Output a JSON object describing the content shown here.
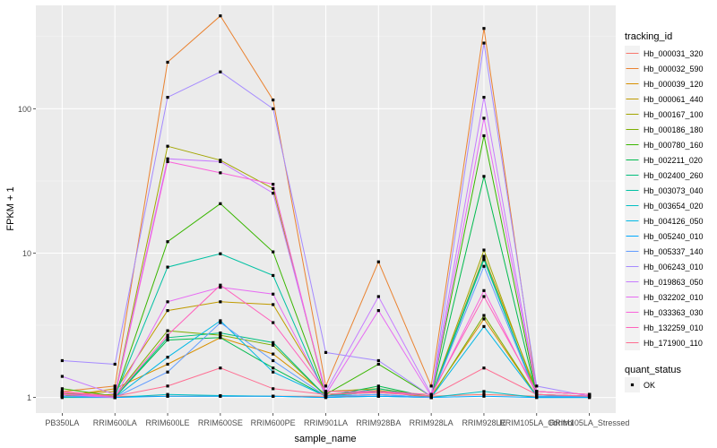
{
  "chart_data": {
    "type": "line",
    "xlabel": "sample_name",
    "ylabel": "FPKM + 1",
    "y_scale": "log10",
    "ylim": [
      0.78,
      520
    ],
    "y_ticks": [
      1,
      10,
      100
    ],
    "grid": true,
    "legend_placement": "right",
    "categories": [
      "PB350LA",
      "RRIM600LA",
      "RRIM600LE",
      "RRIM600SE",
      "RRIM600PE",
      "RRIM901LA",
      "RRIM928BA",
      "RRIM928LA",
      "RRIM928LE",
      "RRIM105LA_Control",
      "RRIM105LA_Stressed"
    ],
    "legend_title": "tracking_id",
    "series": [
      {
        "name": "Hb_000031_320",
        "color": "#F8766D",
        "values": [
          1.06,
          1.02,
          1.02,
          1.02,
          1.02,
          1.02,
          1.02,
          1.02,
          1.05,
          1.02,
          1.03
        ]
      },
      {
        "name": "Hb_000032_590",
        "color": "#EA8331",
        "values": [
          1.1,
          1.2,
          210,
          440,
          115,
          1.2,
          8.7,
          1.2,
          360,
          1.1,
          1.05
        ]
      },
      {
        "name": "Hb_000039_120",
        "color": "#D89000",
        "values": [
          1.02,
          1.15,
          1.7,
          2.6,
          2.0,
          1.05,
          1.1,
          1.02,
          3.5,
          1.02,
          1.02
        ]
      },
      {
        "name": "Hb_000061_440",
        "color": "#C09B00",
        "values": [
          1.05,
          1.1,
          4.0,
          4.6,
          4.4,
          1.1,
          1.15,
          1.02,
          9.5,
          1.1,
          1.05
        ]
      },
      {
        "name": "Hb_000167_100",
        "color": "#A3A500",
        "values": [
          1.02,
          1.05,
          55,
          44,
          28,
          1.05,
          1.12,
          1.02,
          10.5,
          1.05,
          1.02
        ]
      },
      {
        "name": "Hb_000186_180",
        "color": "#7CAE00",
        "values": [
          1.0,
          1.02,
          2.9,
          2.7,
          2.3,
          1.02,
          1.1,
          1.0,
          3.7,
          1.02,
          1.02
        ]
      },
      {
        "name": "Hb_000780_160",
        "color": "#39B600",
        "values": [
          1.15,
          1.02,
          12,
          22,
          10.2,
          1.05,
          1.7,
          1.02,
          65,
          1.05,
          1.02
        ]
      },
      {
        "name": "Hb_002211_020",
        "color": "#00BB4E",
        "values": [
          1.08,
          1.0,
          2.5,
          2.6,
          1.6,
          1.02,
          1.2,
          1.0,
          34,
          1.02,
          1.02
        ]
      },
      {
        "name": "Hb_002400_260",
        "color": "#00BF7D",
        "values": [
          1.02,
          1.0,
          2.6,
          2.8,
          2.4,
          1.02,
          1.15,
          1.0,
          9.0,
          1.02,
          1.02
        ]
      },
      {
        "name": "Hb_003073_040",
        "color": "#00C1A3",
        "values": [
          1.02,
          1.02,
          8.0,
          9.9,
          7.0,
          1.02,
          1.1,
          1.02,
          9.2,
          1.02,
          1.02
        ]
      },
      {
        "name": "Hb_003654_020",
        "color": "#00BFC4",
        "values": [
          1.0,
          1.0,
          1.05,
          1.03,
          1.02,
          1.0,
          1.02,
          1.0,
          1.1,
          1.0,
          1.0
        ]
      },
      {
        "name": "Hb_004126_050",
        "color": "#00B8E5",
        "values": [
          1.02,
          1.0,
          1.9,
          3.4,
          1.5,
          1.02,
          1.05,
          1.0,
          3.1,
          1.02,
          1.02
        ]
      },
      {
        "name": "Hb_005240_010",
        "color": "#00A9FF",
        "values": [
          1.02,
          1.0,
          1.02,
          1.02,
          1.02,
          1.0,
          1.02,
          1.0,
          1.02,
          1.0,
          1.0
        ]
      },
      {
        "name": "Hb_005337_140",
        "color": "#619CFF",
        "values": [
          1.02,
          1.0,
          1.5,
          3.3,
          1.8,
          1.02,
          1.05,
          1.0,
          8.1,
          1.02,
          1.02
        ]
      },
      {
        "name": "Hb_006243_010",
        "color": "#A58AFF",
        "values": [
          1.8,
          1.7,
          120,
          180,
          100,
          2.05,
          1.8,
          1.02,
          285,
          1.2,
          1.02
        ]
      },
      {
        "name": "Hb_019863_050",
        "color": "#C77CFF",
        "values": [
          1.4,
          1.05,
          45,
          43,
          26,
          1.1,
          5.0,
          1.05,
          120,
          1.1,
          1.05
        ]
      },
      {
        "name": "Hb_032202_010",
        "color": "#E76BF3",
        "values": [
          1.05,
          1.0,
          4.6,
          5.8,
          5.2,
          1.05,
          4.0,
          1.02,
          86,
          1.1,
          1.05
        ]
      },
      {
        "name": "Hb_033363_030",
        "color": "#FA62DB",
        "values": [
          1.05,
          1.02,
          43,
          36,
          30,
          1.05,
          1.1,
          1.02,
          5.5,
          1.05,
          1.02
        ]
      },
      {
        "name": "Hb_132259_010",
        "color": "#FF62BC",
        "values": [
          1.08,
          1.02,
          2.7,
          6.0,
          3.3,
          1.1,
          1.1,
          1.05,
          5.0,
          1.1,
          1.05
        ]
      },
      {
        "name": "Hb_171900_110",
        "color": "#FF6C91",
        "values": [
          1.1,
          1.02,
          1.2,
          1.6,
          1.15,
          1.05,
          1.08,
          1.02,
          1.6,
          1.05,
          1.02
        ]
      }
    ],
    "legend2_title": "quant_status",
    "legend2_items": [
      "OK"
    ]
  }
}
